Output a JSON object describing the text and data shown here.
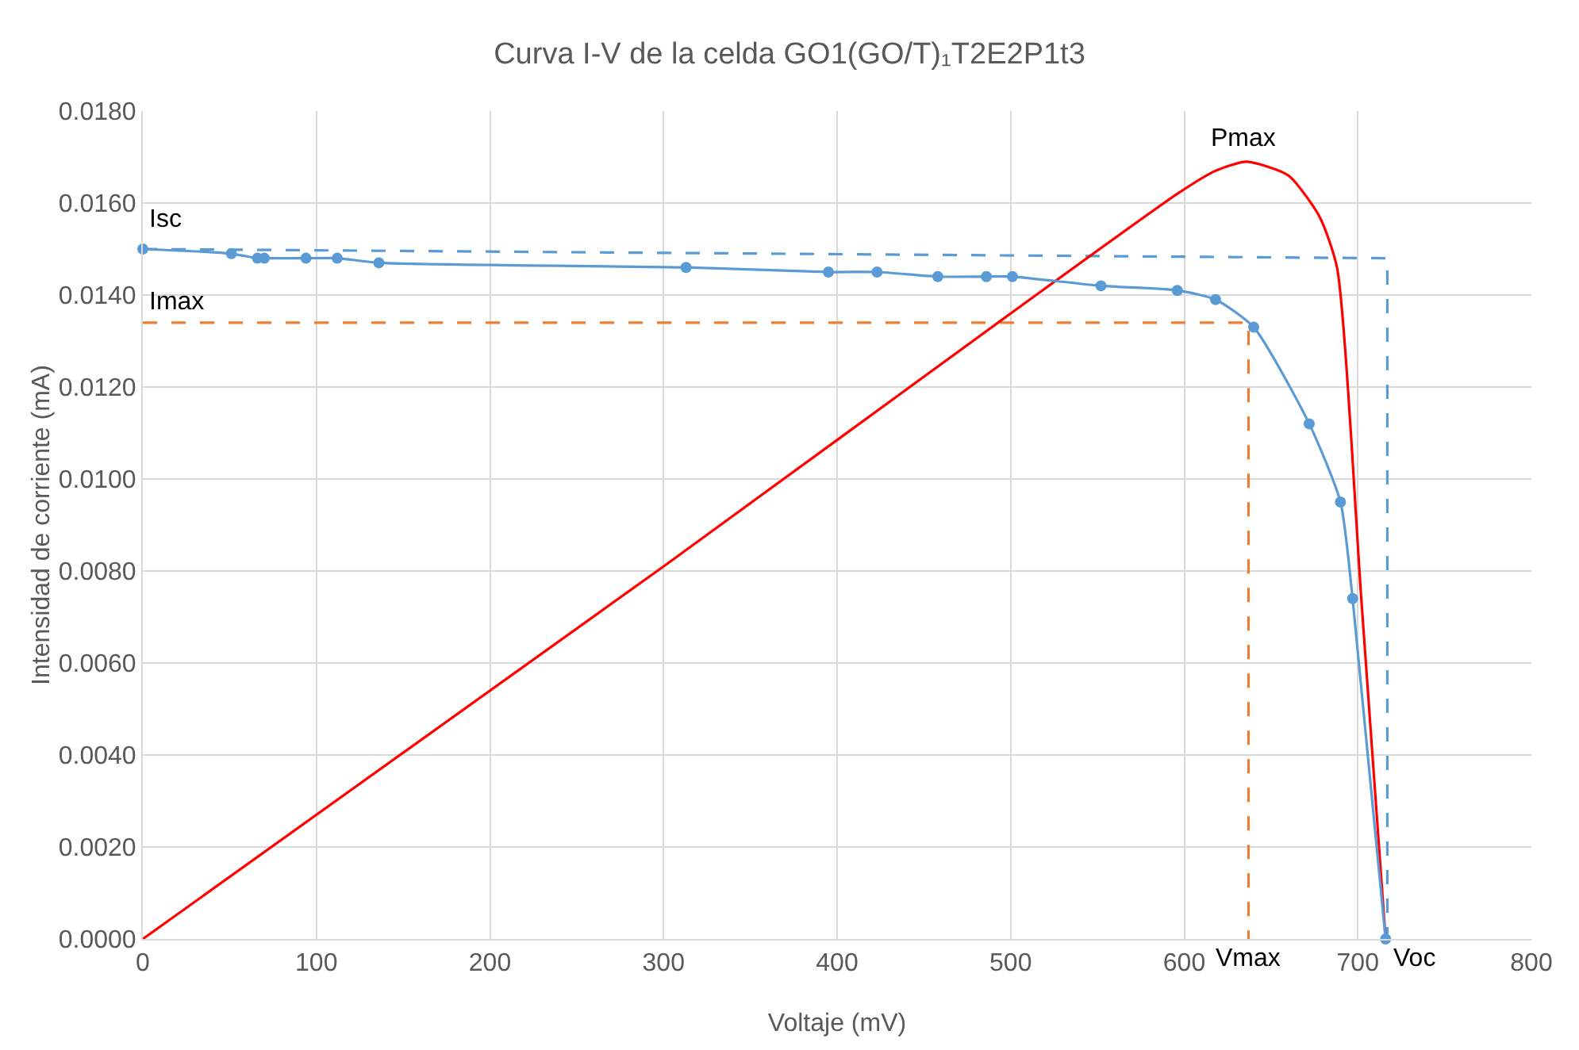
{
  "chart_data": {
    "type": "line",
    "title": "Curva I-V de la celda GO1(GO/T)₁T2E2P1t3",
    "xlabel": "Voltaje (mV)",
    "ylabel": "Intensidad de corriente (mA)",
    "xlim": [
      0,
      800
    ],
    "xticks": [
      0,
      100,
      200,
      300,
      400,
      500,
      600,
      700,
      800
    ],
    "ylim": [
      0,
      0.018
    ],
    "yticks": [
      {
        "value": 0,
        "label": "0.0000"
      },
      {
        "value": 0.002,
        "label": "0.0020"
      },
      {
        "value": 0.004,
        "label": "0.0040"
      },
      {
        "value": 0.006,
        "label": "0.0060"
      },
      {
        "value": 0.008,
        "label": "0.0080"
      },
      {
        "value": 0.01,
        "label": "0.0100"
      },
      {
        "value": 0.012,
        "label": "0.0120"
      },
      {
        "value": 0.014,
        "label": "0.0140"
      },
      {
        "value": 0.016,
        "label": "0.0160"
      },
      {
        "value": 0.018,
        "label": "0.0180"
      }
    ],
    "grid": true,
    "series": [
      {
        "color": "#5b9bd5",
        "line_style": "dashed",
        "marker": "none",
        "x": [
          0,
          717,
          717
        ],
        "values": [
          0.015,
          0.0148,
          0
        ]
      },
      {
        "color": "#ed7d31",
        "line_style": "dashed",
        "marker": "none",
        "x": [
          0,
          637,
          637
        ],
        "values": [
          0.0134,
          0.0134,
          0
        ]
      },
      {
        "color": "#ff0000",
        "line_style": "solid",
        "marker": "none",
        "x": [
          0,
          300,
          500,
          596,
          618,
          636,
          660,
          678,
          688,
          702,
          716
        ],
        "values": [
          0,
          0.0081,
          0.0136,
          0.0162,
          0.0167,
          0.0169,
          0.0166,
          0.0157,
          0.0146,
          0.0074,
          0
        ]
      },
      {
        "color": "#5b9bd5",
        "line_style": "solid",
        "marker": "circle",
        "x": [
          0,
          51,
          66,
          70,
          94,
          112,
          136,
          313,
          395,
          423,
          458,
          486,
          501,
          552,
          596,
          618,
          640,
          672,
          690,
          697,
          716
        ],
        "values": [
          0.015,
          0.0149,
          0.0148,
          0.0148,
          0.0148,
          0.0148,
          0.0147,
          0.0146,
          0.0145,
          0.0145,
          0.0144,
          0.0144,
          0.0144,
          0.0142,
          0.0141,
          0.0139,
          0.0133,
          0.0112,
          0.0095,
          0.0074,
          0
        ]
      }
    ],
    "annotations": [
      {
        "text": "Isc",
        "x": 0,
        "y": 0.015
      },
      {
        "text": "Imax",
        "x": 0,
        "y": 0.0134
      },
      {
        "text": "Pmax",
        "x": 636,
        "y": 0.0169
      },
      {
        "text": "Vmax",
        "x": 637,
        "y": 0
      },
      {
        "text": "Voc",
        "x": 717,
        "y": 0
      }
    ]
  }
}
